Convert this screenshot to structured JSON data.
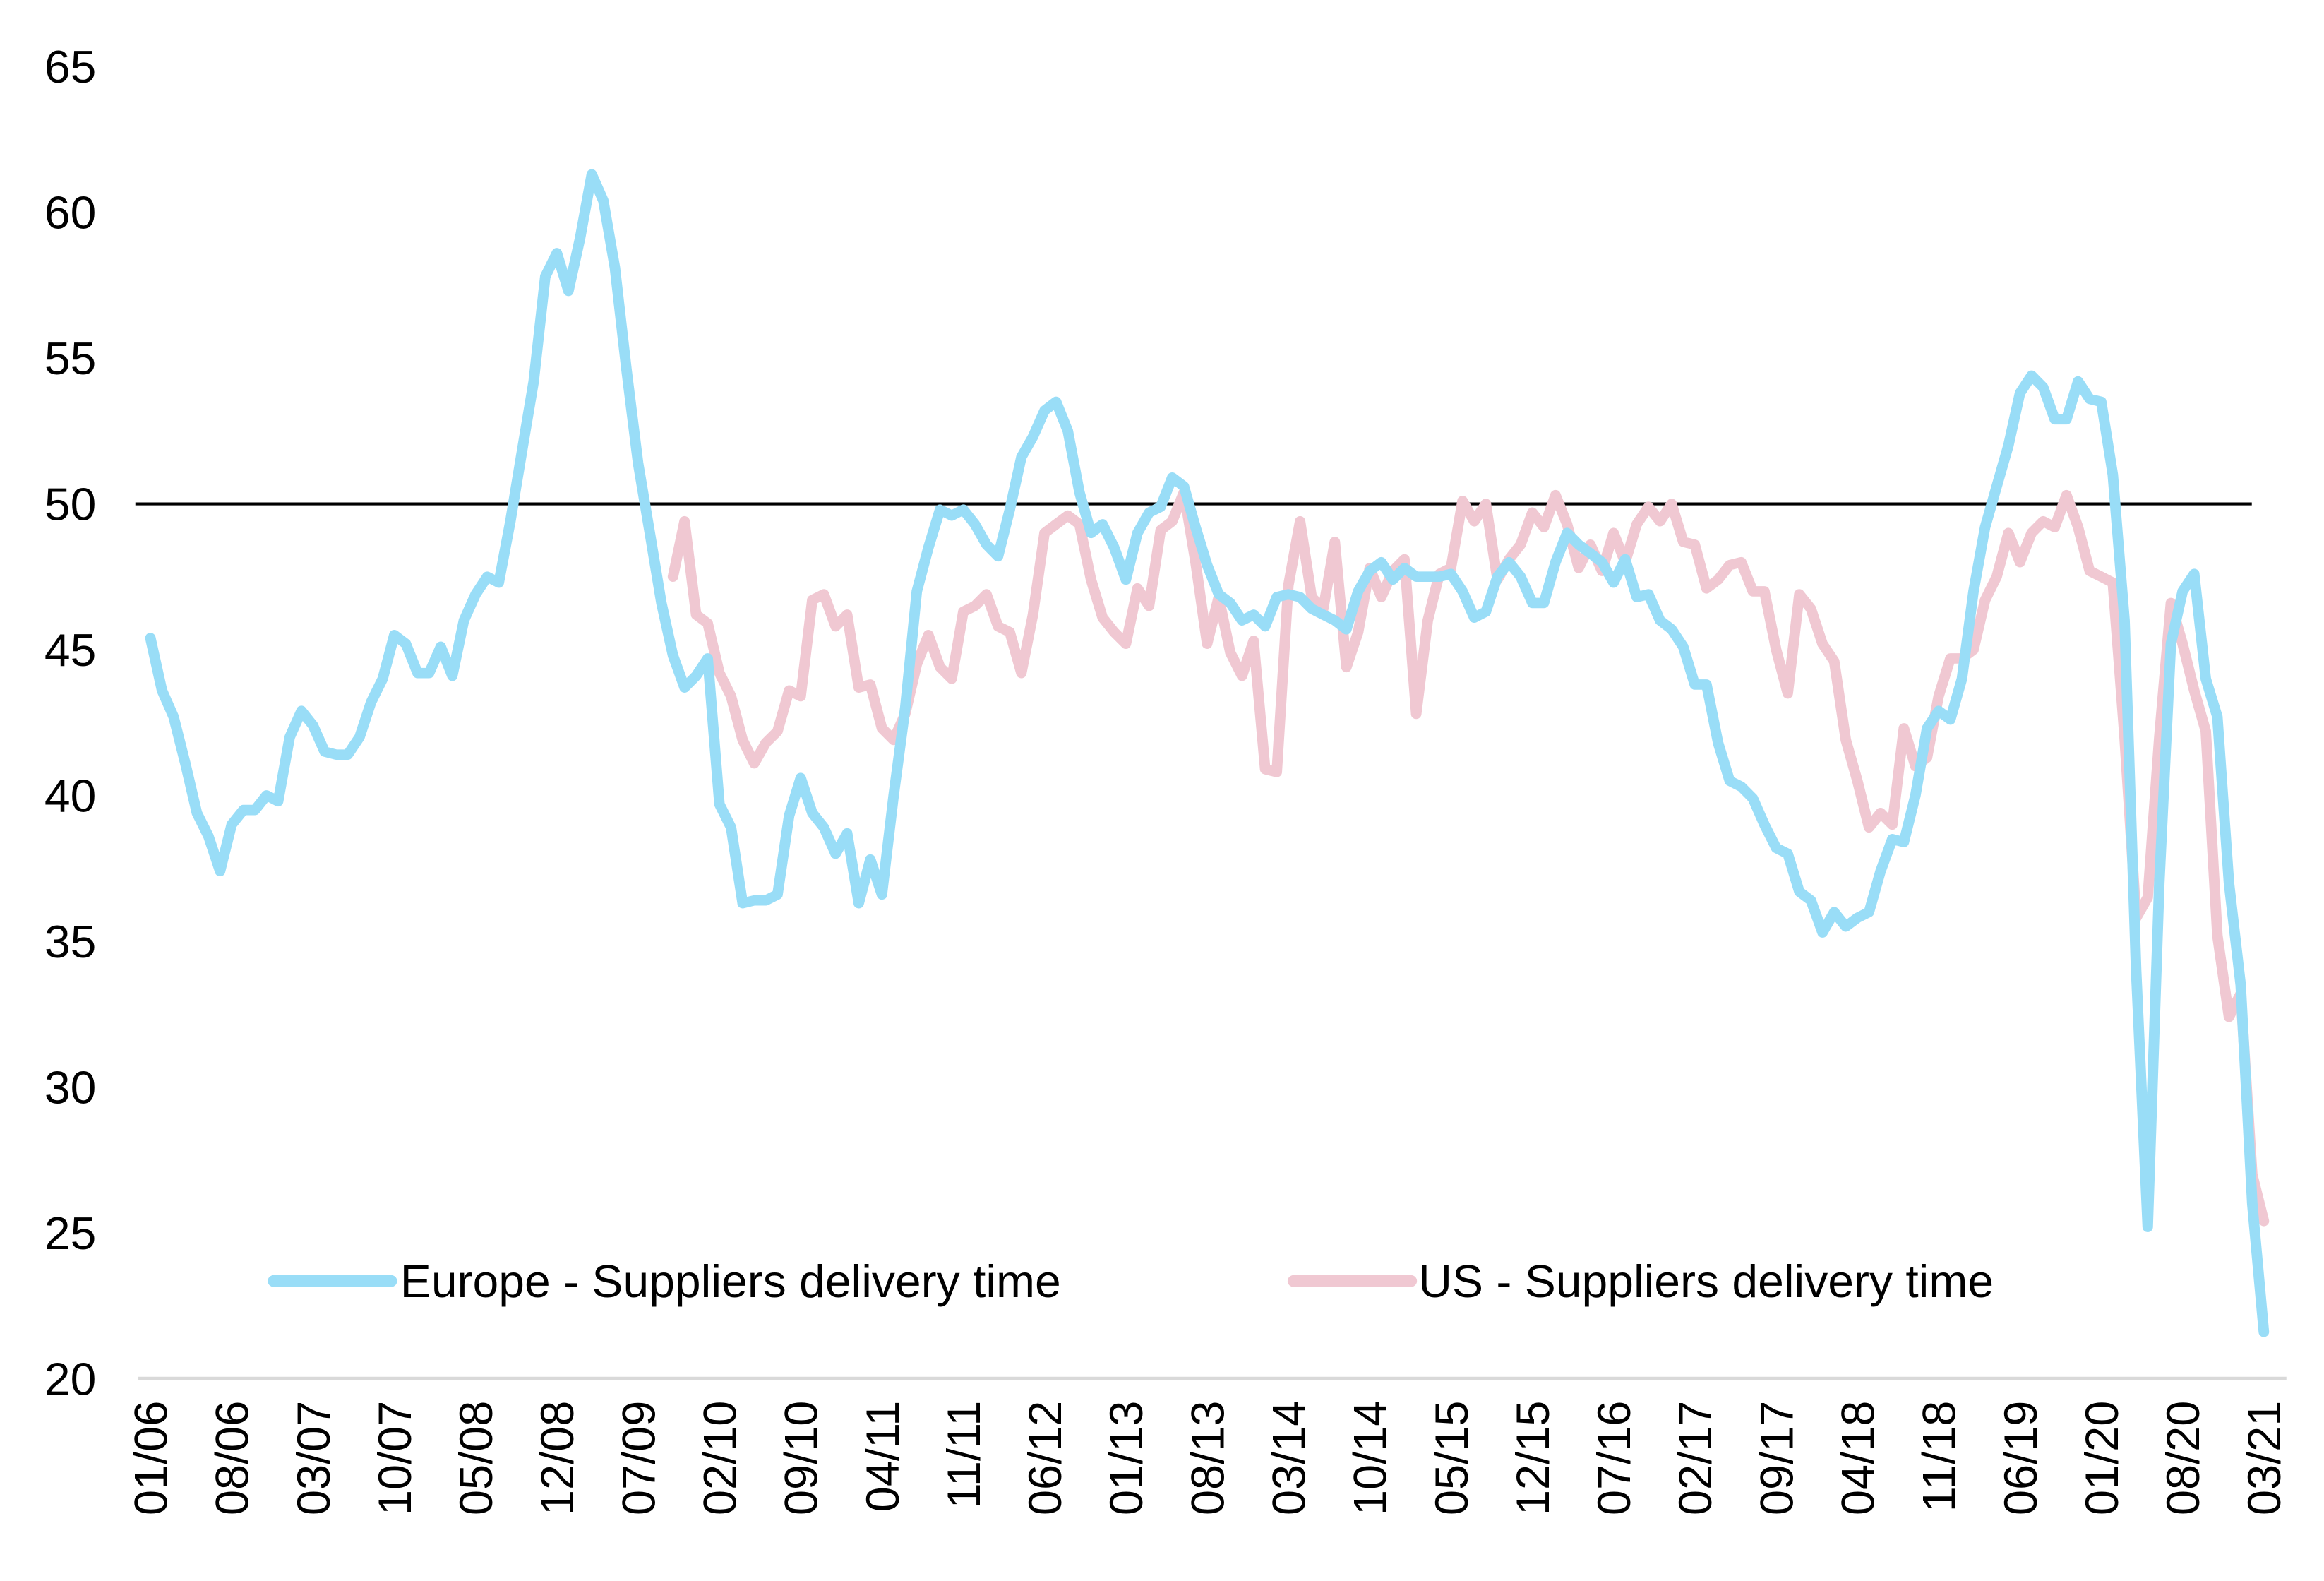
{
  "chart_data": {
    "type": "line",
    "title": "",
    "xlabel": "",
    "ylabel": "",
    "ylim": [
      20,
      65
    ],
    "yticks": [
      20,
      25,
      30,
      35,
      40,
      45,
      50,
      55,
      60,
      65
    ],
    "xticks": [
      "01/06",
      "08/06",
      "03/07",
      "10/07",
      "05/08",
      "12/08",
      "07/09",
      "02/10",
      "09/10",
      "04/11",
      "11/11",
      "06/12",
      "01/13",
      "08/13",
      "03/14",
      "10/14",
      "05/15",
      "12/15",
      "07/16",
      "02/17",
      "09/17",
      "04/18",
      "11/18",
      "06/19",
      "01/20",
      "08/20",
      "03/21"
    ],
    "x_range": [
      "01/06",
      "03/21"
    ],
    "frequency": "monthly",
    "reference_line": 50,
    "grid": false,
    "legend_position": "bottom",
    "series": [
      {
        "name": "Europe - Suppliers delivery time",
        "color": "#99DDF7",
        "start": "01/06",
        "values": [
          45.4,
          43.6,
          42.7,
          41.1,
          39.4,
          38.6,
          37.4,
          39.0,
          39.5,
          39.5,
          40.0,
          39.8,
          42.0,
          42.9,
          42.4,
          41.5,
          41.4,
          41.4,
          42.0,
          43.2,
          44.0,
          45.5,
          45.2,
          44.2,
          44.2,
          45.1,
          44.1,
          46.0,
          46.9,
          47.5,
          47.3,
          49.4,
          51.8,
          54.2,
          57.8,
          58.6,
          57.3,
          59.1,
          61.3,
          60.4,
          58.1,
          54.6,
          51.4,
          49.0,
          46.6,
          44.8,
          43.7,
          44.1,
          44.7,
          39.7,
          38.9,
          36.3,
          36.4,
          36.4,
          36.6,
          39.3,
          40.6,
          39.4,
          38.9,
          38.0,
          38.7,
          36.3,
          37.8,
          36.6,
          40.0,
          43.0,
          47.0,
          48.5,
          49.8,
          49.6,
          49.8,
          49.3,
          48.6,
          48.2,
          49.8,
          51.6,
          52.3,
          53.2,
          53.5,
          52.5,
          50.4,
          49.0,
          49.3,
          48.5,
          47.4,
          49.0,
          49.7,
          49.9,
          50.9,
          50.6,
          49.2,
          47.9,
          46.9,
          46.6,
          46.0,
          46.2,
          45.8,
          46.8,
          46.9,
          46.8,
          46.4,
          46.2,
          46.0,
          45.7,
          47.0,
          47.7,
          48.0,
          47.4,
          47.8,
          47.5,
          47.5,
          47.5,
          47.6,
          47.0,
          46.1,
          46.3,
          47.5,
          48.0,
          47.5,
          46.6,
          46.6,
          48.0,
          49.0,
          48.6,
          48.3,
          48.0,
          47.3,
          48.1,
          46.8,
          46.9,
          46.0,
          45.7,
          45.1,
          43.8,
          43.8,
          41.8,
          40.5,
          40.3,
          39.9,
          39.0,
          38.2,
          38.0,
          36.7,
          36.4,
          35.3,
          36.0,
          35.5,
          35.8,
          36.0,
          37.4,
          38.5,
          38.4,
          40.0,
          42.3,
          42.9,
          42.6,
          44.0,
          47.0,
          49.2,
          50.6,
          52.0,
          53.8,
          54.4,
          54.0,
          52.9,
          52.9,
          54.2,
          53.6,
          53.5,
          51.0,
          46.0,
          34.0,
          25.2,
          37.0,
          45.2,
          47.0,
          47.6,
          44.0,
          42.7,
          37.0,
          33.5,
          26.0,
          21.6
        ]
      },
      {
        "name": "US - Suppliers delivery time",
        "color": "#F0C8D2",
        "start": "10/09",
        "values": [
          47.5,
          49.4,
          46.2,
          45.9,
          44.2,
          43.4,
          41.9,
          41.1,
          41.8,
          42.2,
          43.6,
          43.4,
          46.7,
          46.9,
          45.8,
          46.2,
          43.7,
          43.8,
          42.3,
          41.9,
          42.8,
          44.5,
          45.5,
          44.4,
          44.0,
          46.3,
          46.5,
          46.9,
          45.8,
          45.6,
          44.2,
          46.2,
          49.0,
          49.3,
          49.6,
          49.3,
          47.4,
          46.1,
          45.6,
          45.2,
          47.1,
          46.5,
          49.1,
          49.4,
          50.4,
          48.0,
          45.2,
          46.8,
          44.9,
          44.1,
          45.3,
          40.9,
          40.8,
          47.2,
          49.4,
          46.8,
          46.4,
          48.7,
          44.4,
          45.6,
          47.8,
          46.8,
          47.7,
          48.1,
          42.8,
          46.0,
          47.6,
          47.8,
          50.1,
          49.4,
          50.0,
          47.4,
          48.1,
          48.6,
          49.7,
          49.2,
          50.3,
          49.3,
          47.8,
          48.6,
          47.7,
          49.0,
          48.0,
          49.3,
          49.9,
          49.4,
          50.0,
          48.7,
          48.6,
          47.1,
          47.4,
          47.9,
          48.0,
          47.0,
          47.0,
          45.0,
          43.5,
          46.9,
          46.4,
          45.2,
          44.6,
          41.9,
          40.5,
          38.9,
          39.4,
          39.0,
          42.3,
          41.0,
          41.3,
          43.4,
          44.7,
          44.7,
          45.0,
          46.7,
          47.5,
          49.0,
          48.0,
          49.0,
          49.4,
          49.2,
          50.3,
          49.2,
          47.7,
          47.5,
          47.3,
          42.0,
          35.8,
          36.5,
          42.0,
          46.6,
          45.2,
          43.6,
          42.2,
          35.2,
          32.4,
          33.2,
          27.0,
          25.4
        ]
      }
    ]
  }
}
